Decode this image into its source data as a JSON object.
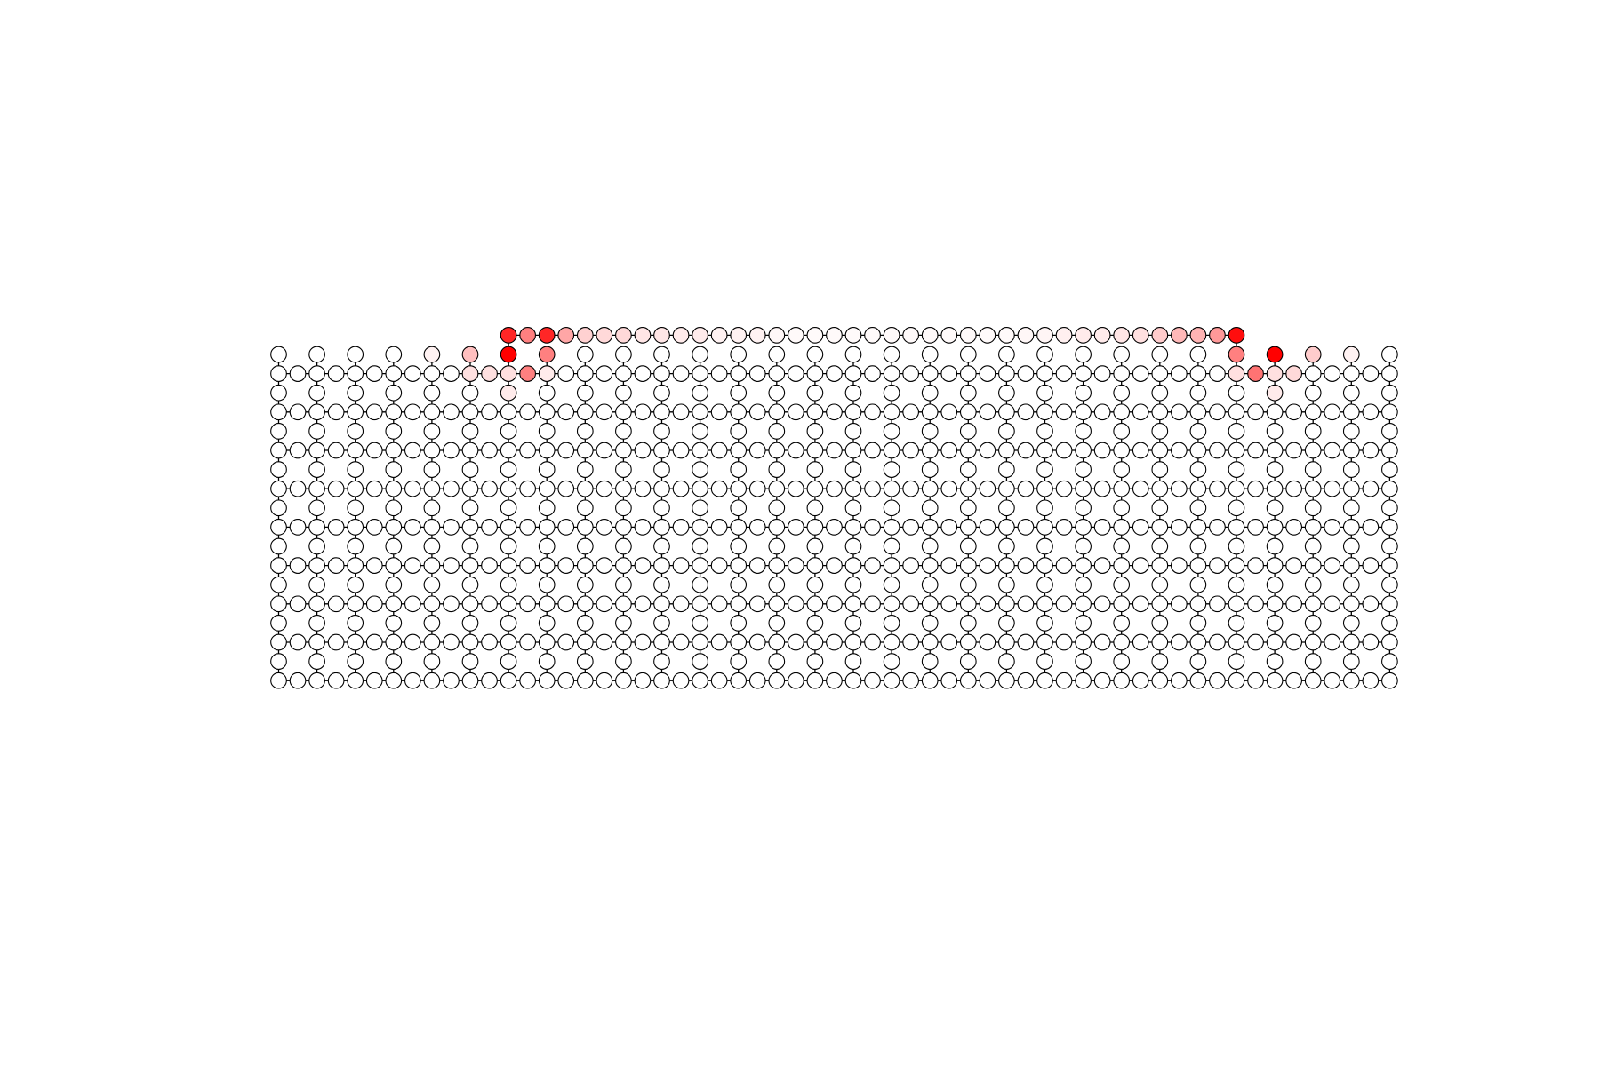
{
  "lattice": {
    "columns": 59,
    "bulk_rows": 17,
    "terrace_columns": [
      12,
      50
    ],
    "node_fill": "#ffffff",
    "node_stroke": "#000000",
    "edge_color": "#000000",
    "highlight_color": "#ff0000",
    "highlighted_nodes": [
      {
        "col": 8,
        "row": 0,
        "level": 0.05
      },
      {
        "col": 10,
        "row": 0,
        "level": 0.25
      },
      {
        "col": 10,
        "row": 1,
        "level": 0.12
      },
      {
        "col": 11,
        "row": 1,
        "level": 0.12
      },
      {
        "col": 12,
        "row": 0,
        "level": 1.0
      },
      {
        "col": 12,
        "row": 1,
        "level": 0.12
      },
      {
        "col": 12,
        "row": 2,
        "level": 0.08
      },
      {
        "col": 13,
        "row": 1,
        "level": 0.5
      },
      {
        "col": 14,
        "row": 0,
        "level": 0.5
      },
      {
        "col": 14,
        "row": 1,
        "level": 0.08
      },
      {
        "col": 14,
        "row": -1,
        "level": 0.85
      },
      {
        "col": 50,
        "row": -1,
        "level": 0.95
      },
      {
        "col": 50,
        "row": 0,
        "level": 0.5
      },
      {
        "col": 50,
        "row": 1,
        "level": 0.12
      },
      {
        "col": 51,
        "row": 1,
        "level": 0.55
      },
      {
        "col": 52,
        "row": 0,
        "level": 1.0
      },
      {
        "col": 52,
        "row": 1,
        "level": 0.12
      },
      {
        "col": 52,
        "row": 2,
        "level": 0.08
      },
      {
        "col": 53,
        "row": 1,
        "level": 0.15
      },
      {
        "col": 54,
        "row": 0,
        "level": 0.2
      },
      {
        "col": 56,
        "row": 0,
        "level": 0.05
      }
    ],
    "terrace_levels": [
      0.85,
      0.5,
      0.4,
      0.35,
      0.18,
      0.15,
      0.15,
      0.1,
      0.1,
      0.08,
      0.08,
      0.05,
      0.05,
      0.05,
      0.03,
      0.02,
      0.02,
      0.02,
      0.02,
      0.02,
      0.02,
      0.02,
      0.02,
      0.02,
      0.02,
      0.02,
      0.02,
      0.03,
      0.04,
      0.06,
      0.08,
      0.08,
      0.1,
      0.12,
      0.2,
      0.28,
      0.3,
      0.4,
      0.5,
      0.95
    ]
  }
}
